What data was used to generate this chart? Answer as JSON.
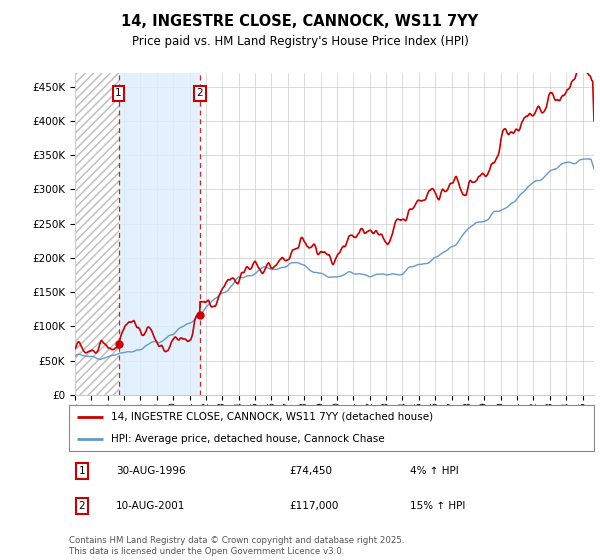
{
  "title_line1": "14, INGESTRE CLOSE, CANNOCK, WS11 7YY",
  "title_line2": "Price paid vs. HM Land Registry's House Price Index (HPI)",
  "legend_line1": "14, INGESTRE CLOSE, CANNOCK, WS11 7YY (detached house)",
  "legend_line2": "HPI: Average price, detached house, Cannock Chase",
  "footer": "Contains HM Land Registry data © Crown copyright and database right 2025.\nThis data is licensed under the Open Government Licence v3.0.",
  "annotation1": {
    "num": "1",
    "date": "30-AUG-1996",
    "price": "£74,450",
    "pct": "4% ↑ HPI"
  },
  "annotation2": {
    "num": "2",
    "date": "10-AUG-2001",
    "price": "£117,000",
    "pct": "15% ↑ HPI"
  },
  "ylim": [
    0,
    470000
  ],
  "yticks": [
    0,
    50000,
    100000,
    150000,
    200000,
    250000,
    300000,
    350000,
    400000,
    450000
  ],
  "ytick_labels": [
    "£0",
    "£50K",
    "£100K",
    "£150K",
    "£200K",
    "£250K",
    "£300K",
    "£350K",
    "£400K",
    "£450K"
  ],
  "sale1_x": 1996.66,
  "sale1_y": 74450,
  "sale2_x": 2001.61,
  "sale2_y": 117000,
  "red_color": "#cc0000",
  "blue_color": "#6699cc",
  "grid_color": "#cccccc",
  "shade_color": "#ddeeff",
  "hatch_color": "#bbbbbb",
  "xlim_start": 1994.0,
  "xlim_end": 2025.7
}
